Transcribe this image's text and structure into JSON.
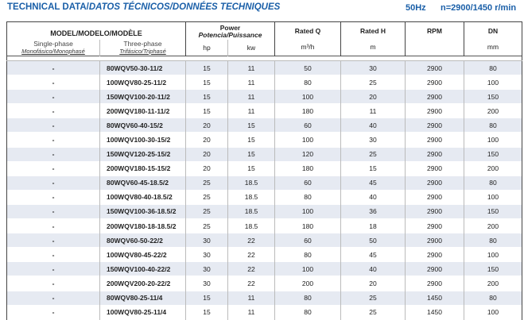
{
  "title": {
    "main": "TECHNICAL DATA/",
    "italic": "DATOS TÉCNICOS/DONNÉES TECHNIQUES"
  },
  "frequency": "50Hz",
  "speed": "n=2900/1450 r/min",
  "header": {
    "model": "MODEL/MODELO/MODÈLE",
    "single_phase": "Single-phase",
    "single_phase_sub": "Monofásico/Monophasé",
    "three_phase": "Three-phase",
    "three_phase_sub": "Trifásico/Triphasé",
    "power": "Power",
    "power_sub": "Potencia/Puissance",
    "hp": "hp",
    "kw": "kw",
    "rated_q": "Rated Q",
    "rated_q_unit": "m³/h",
    "rated_h": "Rated H",
    "rated_h_unit": "m",
    "rpm": "RPM",
    "dn": "DN",
    "dn_unit": "mm"
  },
  "rows": [
    {
      "single": "-",
      "model": "80WQV50-30-11/2",
      "hp": "15",
      "kw": "11",
      "q": "50",
      "h": "30",
      "rpm": "2900",
      "dn": "80"
    },
    {
      "single": "-",
      "model": "100WQV80-25-11/2",
      "hp": "15",
      "kw": "11",
      "q": "80",
      "h": "25",
      "rpm": "2900",
      "dn": "100"
    },
    {
      "single": "-",
      "model": "150WQV100-20-11/2",
      "hp": "15",
      "kw": "11",
      "q": "100",
      "h": "20",
      "rpm": "2900",
      "dn": "150"
    },
    {
      "single": "-",
      "model": "200WQV180-11-11/2",
      "hp": "15",
      "kw": "11",
      "q": "180",
      "h": "11",
      "rpm": "2900",
      "dn": "200"
    },
    {
      "single": "-",
      "model": "80WQV60-40-15/2",
      "hp": "20",
      "kw": "15",
      "q": "60",
      "h": "40",
      "rpm": "2900",
      "dn": "80"
    },
    {
      "single": "-",
      "model": "100WQV100-30-15/2",
      "hp": "20",
      "kw": "15",
      "q": "100",
      "h": "30",
      "rpm": "2900",
      "dn": "100"
    },
    {
      "single": "-",
      "model": "150WQV120-25-15/2",
      "hp": "20",
      "kw": "15",
      "q": "120",
      "h": "25",
      "rpm": "2900",
      "dn": "150"
    },
    {
      "single": "-",
      "model": "200WQV180-15-15/2",
      "hp": "20",
      "kw": "15",
      "q": "180",
      "h": "15",
      "rpm": "2900",
      "dn": "200"
    },
    {
      "single": "-",
      "model": "80WQV60-45-18.5/2",
      "hp": "25",
      "kw": "18.5",
      "q": "60",
      "h": "45",
      "rpm": "2900",
      "dn": "80"
    },
    {
      "single": "-",
      "model": "100WQV80-40-18.5/2",
      "hp": "25",
      "kw": "18.5",
      "q": "80",
      "h": "40",
      "rpm": "2900",
      "dn": "100"
    },
    {
      "single": "-",
      "model": "150WQV100-36-18.5/2",
      "hp": "25",
      "kw": "18.5",
      "q": "100",
      "h": "36",
      "rpm": "2900",
      "dn": "150"
    },
    {
      "single": "-",
      "model": "200WQV180-18-18.5/2",
      "hp": "25",
      "kw": "18.5",
      "q": "180",
      "h": "18",
      "rpm": "2900",
      "dn": "200"
    },
    {
      "single": "-",
      "model": "80WQV60-50-22/2",
      "hp": "30",
      "kw": "22",
      "q": "60",
      "h": "50",
      "rpm": "2900",
      "dn": "80"
    },
    {
      "single": "-",
      "model": "100WQV80-45-22/2",
      "hp": "30",
      "kw": "22",
      "q": "80",
      "h": "45",
      "rpm": "2900",
      "dn": "100"
    },
    {
      "single": "-",
      "model": "150WQV100-40-22/2",
      "hp": "30",
      "kw": "22",
      "q": "100",
      "h": "40",
      "rpm": "2900",
      "dn": "150"
    },
    {
      "single": "-",
      "model": "200WQV200-20-22/2",
      "hp": "30",
      "kw": "22",
      "q": "200",
      "h": "20",
      "rpm": "2900",
      "dn": "200"
    },
    {
      "single": "-",
      "model": "80WQV80-25-11/4",
      "hp": "15",
      "kw": "11",
      "q": "80",
      "h": "25",
      "rpm": "1450",
      "dn": "80"
    },
    {
      "single": "-",
      "model": "100WQV80-25-11/4",
      "hp": "15",
      "kw": "11",
      "q": "80",
      "h": "25",
      "rpm": "1450",
      "dn": "100"
    }
  ]
}
